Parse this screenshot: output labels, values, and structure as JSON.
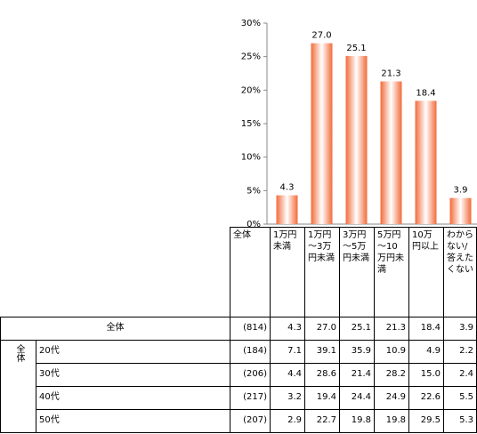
{
  "chart_data": {
    "type": "bar",
    "categories": [
      "1万円未満",
      "1万円～3万円未満",
      "3万円～5万円未満",
      "5万円～10万円未満",
      "10万円以上",
      "わからない/答えたくない"
    ],
    "values": [
      4.3,
      27.0,
      25.1,
      21.3,
      18.4,
      3.9
    ],
    "value_labels": [
      "4.3",
      "27.0",
      "25.1",
      "21.3",
      "18.4",
      "3.9"
    ],
    "color": "#f26b3a",
    "ylim": [
      0,
      30
    ],
    "yticks": [
      {
        "value": 0,
        "label": "0%"
      },
      {
        "value": 5,
        "label": "5%"
      },
      {
        "value": 10,
        "label": "10%"
      },
      {
        "value": 15,
        "label": "15%"
      },
      {
        "value": 20,
        "label": "20%"
      },
      {
        "value": 25,
        "label": "25%"
      },
      {
        "value": 30,
        "label": "30%"
      }
    ]
  },
  "table": {
    "corner": "全体",
    "group": "全体",
    "rows": [
      [
        "全体",
        "(814)",
        "4.3",
        "27.0",
        "25.1",
        "21.3",
        "18.4",
        "3.9"
      ],
      [
        "20代",
        "(184)",
        "7.1",
        "39.1",
        "35.9",
        "10.9",
        "4.9",
        "2.2"
      ],
      [
        "30代",
        "(206)",
        "4.4",
        "28.6",
        "21.4",
        "28.2",
        "15.0",
        "2.4"
      ],
      [
        "40代",
        "(217)",
        "3.2",
        "19.4",
        "24.4",
        "24.9",
        "22.6",
        "5.5"
      ],
      [
        "50代",
        "(207)",
        "2.9",
        "22.7",
        "19.8",
        "19.8",
        "29.5",
        "5.3"
      ]
    ]
  }
}
